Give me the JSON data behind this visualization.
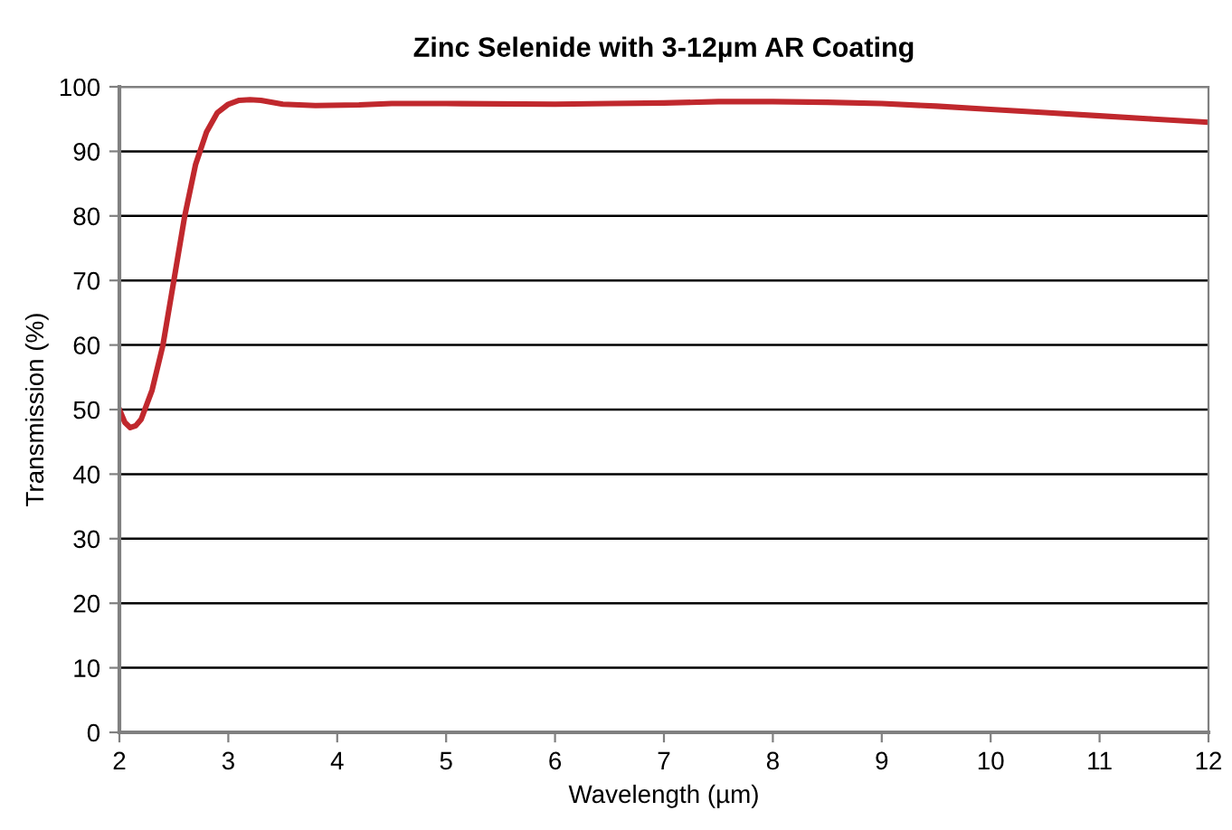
{
  "chart_data": {
    "type": "line",
    "title": "Zinc Selenide with 3-12µm AR Coating",
    "xlabel": "Wavelength (µm)",
    "ylabel": "Transmission (%)",
    "xlim": [
      2,
      12
    ],
    "xticks": [
      2,
      3,
      4,
      5,
      6,
      7,
      8,
      9,
      10,
      11,
      12
    ],
    "ylim": [
      0,
      100
    ],
    "yticks": [
      0,
      10,
      20,
      30,
      40,
      50,
      60,
      70,
      80,
      90,
      100
    ],
    "grid": "y",
    "legend": false,
    "series": [
      {
        "color": "#c0282d",
        "x": [
          2,
          2.05,
          2.1,
          2.15,
          2.2,
          2.3,
          2.4,
          2.5,
          2.6,
          2.7,
          2.8,
          2.9,
          3.0,
          3.1,
          3.2,
          3.3,
          3.5,
          3.8,
          4.2,
          4.5,
          5,
          6,
          6.5,
          7,
          7.5,
          8,
          8.5,
          9,
          9.5,
          10,
          10.5,
          11,
          11.5,
          12
        ],
        "values": [
          50,
          48,
          47.2,
          47.5,
          48.5,
          53,
          60,
          70,
          80,
          88,
          93,
          96,
          97.3,
          97.9,
          98,
          97.9,
          97.3,
          97.1,
          97.2,
          97.4,
          97.4,
          97.3,
          97.4,
          97.5,
          97.7,
          97.7,
          97.6,
          97.4,
          97,
          96.5,
          96,
          95.5,
          95,
          94.5
        ]
      }
    ]
  }
}
